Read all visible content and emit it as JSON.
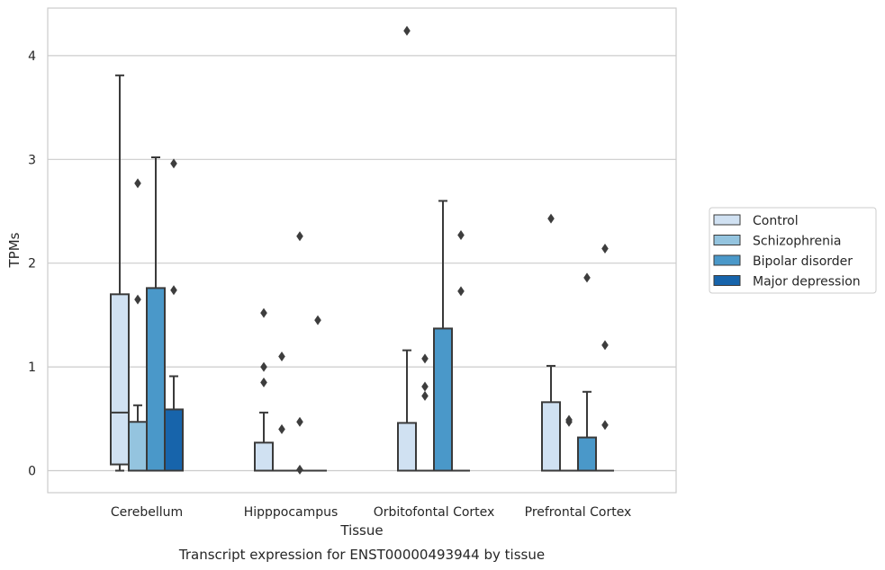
{
  "chart_data": {
    "type": "boxplot",
    "title": "",
    "caption": "Transcript expression for ENST00000493944 by tissue",
    "xlabel": "Tissue",
    "ylabel": "TPMs",
    "ylim": [
      -0.2,
      4.45
    ],
    "yticks": [
      0,
      1,
      2,
      3,
      4
    ],
    "grid": true,
    "legend_position": "right",
    "categories": [
      "Cerebellum",
      "Hipppocampus",
      "Orbitofontal Cortex",
      "Prefrontal Cortex"
    ],
    "series": [
      {
        "name": "Control",
        "color": "#d0e1f2",
        "boxes": [
          {
            "q1": 0.06,
            "median": 0.56,
            "q3": 1.7,
            "whislo": 0.0,
            "whishi": 3.81,
            "fliers": []
          },
          {
            "q1": 0.0,
            "median": 0.0,
            "q3": 0.27,
            "whislo": 0.0,
            "whishi": 0.56,
            "fliers": [
              0.85,
              1.0,
              1.52
            ]
          },
          {
            "q1": 0.0,
            "median": 0.0,
            "q3": 0.46,
            "whislo": 0.0,
            "whishi": 1.16,
            "fliers": [
              4.24
            ]
          },
          {
            "q1": 0.0,
            "median": 0.0,
            "q3": 0.66,
            "whislo": 0.0,
            "whishi": 1.01,
            "fliers": [
              2.43
            ]
          }
        ]
      },
      {
        "name": "Schizophrenia",
        "color": "#94c4df",
        "boxes": [
          {
            "q1": 0.0,
            "median": 0.0,
            "q3": 0.47,
            "whislo": 0.0,
            "whishi": 0.63,
            "fliers": [
              1.65,
              2.77
            ]
          },
          {
            "q1": 0.0,
            "median": 0.0,
            "q3": 0.0,
            "whislo": 0.0,
            "whishi": 0.0,
            "fliers": [
              0.4,
              1.1
            ]
          },
          {
            "q1": 0.0,
            "median": 0.0,
            "q3": 0.0,
            "whislo": 0.0,
            "whishi": 0.0,
            "fliers": [
              0.72,
              0.81,
              1.08
            ]
          },
          {
            "q1": 0.0,
            "median": 0.0,
            "q3": 0.0,
            "whislo": 0.0,
            "whishi": 0.0,
            "fliers": [
              0.47,
              0.49
            ]
          }
        ]
      },
      {
        "name": "Bipolar disorder",
        "color": "#4a98c9",
        "boxes": [
          {
            "q1": 0.0,
            "median": 0.0,
            "q3": 1.76,
            "whislo": 0.0,
            "whishi": 3.02,
            "fliers": []
          },
          {
            "q1": 0.0,
            "median": 0.0,
            "q3": 0.0,
            "whislo": 0.0,
            "whishi": 0.0,
            "fliers": [
              0.01,
              0.47,
              2.26
            ]
          },
          {
            "q1": 0.0,
            "median": 0.0,
            "q3": 1.37,
            "whislo": 0.0,
            "whishi": 2.6,
            "fliers": []
          },
          {
            "q1": 0.0,
            "median": 0.0,
            "q3": 0.32,
            "whislo": 0.0,
            "whishi": 0.76,
            "fliers": [
              1.86
            ]
          }
        ]
      },
      {
        "name": "Major depression",
        "color": "#1764ab",
        "boxes": [
          {
            "q1": 0.0,
            "median": 0.0,
            "q3": 0.59,
            "whislo": 0.0,
            "whishi": 0.91,
            "fliers": [
              1.74,
              2.96
            ]
          },
          {
            "q1": 0.0,
            "median": 0.0,
            "q3": 0.0,
            "whislo": 0.0,
            "whishi": 0.0,
            "fliers": [
              1.45
            ]
          },
          {
            "q1": 0.0,
            "median": 0.0,
            "q3": 0.0,
            "whislo": 0.0,
            "whishi": 0.0,
            "fliers": [
              1.73,
              2.27
            ]
          },
          {
            "q1": 0.0,
            "median": 0.0,
            "q3": 0.0,
            "whislo": 0.0,
            "whishi": 0.0,
            "fliers": [
              0.44,
              1.21,
              2.14
            ]
          }
        ]
      }
    ],
    "colors": {
      "grid": "#cccccc",
      "frame": "#cccccc",
      "edge": "#3a3a3a",
      "flier": "#3d3d3d"
    }
  }
}
